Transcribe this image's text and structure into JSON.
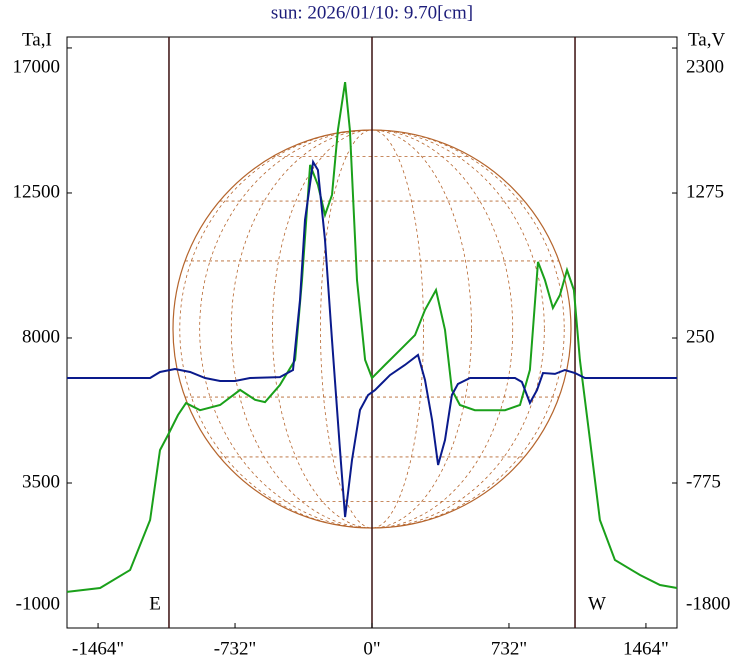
{
  "chart_data": {
    "type": "line",
    "title": "sun: 2026/01/10: 9.70[cm]",
    "y_label": "Ta,I",
    "y2_label": "Ta,V",
    "annotations": [
      "E",
      "W"
    ],
    "xlim": [
      -1630,
      1630
    ],
    "xticks": [
      {
        "value": -1464,
        "label": "-1464\""
      },
      {
        "value": -732,
        "label": "-732\""
      },
      {
        "value": 0,
        "label": "0\""
      },
      {
        "value": 732,
        "label": "732\""
      },
      {
        "value": 1464,
        "label": "1464\""
      }
    ],
    "ylim": [
      -1000,
      17340
    ],
    "yticks": [
      17000,
      12500,
      8000,
      3500,
      -1000
    ],
    "y2lim": [
      -1800,
      2378
    ],
    "y2ticks": [
      2300,
      1275,
      250,
      -775,
      -1800
    ],
    "vlines": [
      -1085,
      0,
      1085
    ],
    "series": [
      {
        "name": "Ta,I",
        "color": "#1aa01a",
        "axis": "y",
        "x": [
          -1630,
          -1453,
          -1293,
          -1186,
          -1133,
          -1090,
          -1037,
          -994,
          -919,
          -812,
          -705,
          -625,
          -572,
          -492,
          -411,
          -374,
          -331,
          -289,
          -251,
          -214,
          -182,
          -144,
          -118,
          -80,
          -37,
          0,
          69,
          150,
          230,
          283,
          342,
          390,
          427,
          470,
          550,
          630,
          711,
          791,
          844,
          887,
          924,
          967,
          1004,
          1042,
          1079,
          1111,
          1165,
          1218,
          1298,
          1432,
          1539,
          1630
        ],
        "values": [
          120,
          240,
          800,
          2350,
          4520,
          4990,
          5610,
          5980,
          5760,
          5920,
          6390,
          6080,
          6010,
          6540,
          7320,
          9800,
          13370,
          12750,
          11820,
          12440,
          14450,
          15940,
          14450,
          9800,
          7320,
          6760,
          7160,
          7630,
          8090,
          8870,
          9490,
          8250,
          6390,
          5920,
          5760,
          5760,
          5760,
          5920,
          7010,
          10360,
          9800,
          8930,
          9330,
          10110,
          9490,
          7320,
          4830,
          2350,
          1110,
          645,
          334,
          240
        ]
      },
      {
        "name": "Ta,V",
        "color": "#0a1a8c",
        "axis": "y2",
        "x": [
          -1630,
          -1186,
          -1133,
          -1053,
          -972,
          -892,
          -812,
          -732,
          -652,
          -492,
          -422,
          -385,
          -358,
          -315,
          -289,
          -251,
          -214,
          -171,
          -144,
          -107,
          -64,
          -21,
          16,
          96,
          176,
          246,
          283,
          321,
          353,
          390,
          427,
          459,
          524,
          630,
          764,
          801,
          844,
          882,
          914,
          978,
          1031,
          1085,
          1138,
          1630
        ],
        "values": [
          -33,
          -33,
          10,
          31,
          10,
          -33,
          -54,
          -54,
          -33,
          -26,
          24,
          519,
          1084,
          1494,
          1438,
          943,
          236,
          -542,
          -1015,
          -612,
          -259,
          -153,
          -118,
          -12,
          59,
          130,
          -47,
          -330,
          -648,
          -471,
          -153,
          -75,
          -33,
          -33,
          -33,
          -61,
          -209,
          -118,
          3,
          -4,
          24,
          3,
          -33,
          -33
        ]
      }
    ]
  }
}
